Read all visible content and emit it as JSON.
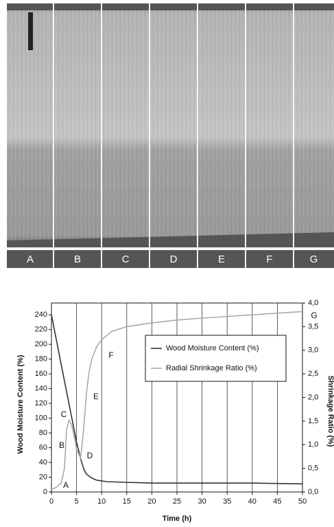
{
  "panel_labels": [
    "A",
    "B",
    "C",
    "D",
    "E",
    "F",
    "G"
  ],
  "chart_data": {
    "type": "line",
    "x_label": "Time (h)",
    "y_label": "Wood Moisture Content (%)",
    "y2_label": "Shrinkage Ratio (%)",
    "xlim": [
      0,
      50
    ],
    "xticks": [
      0,
      5,
      10,
      15,
      20,
      25,
      30,
      35,
      40,
      45,
      50
    ],
    "ylim": [
      0,
      256
    ],
    "yticks": [
      0,
      20,
      40,
      60,
      80,
      100,
      120,
      140,
      160,
      180,
      200,
      220,
      240
    ],
    "y2lim": [
      0,
      4
    ],
    "y2ticks": [
      {
        "value": 0,
        "label": "0,0"
      },
      {
        "value": 0.5,
        "label": "0,5"
      },
      {
        "value": 1,
        "label": "1,0"
      },
      {
        "value": 1.5,
        "label": "1,5"
      },
      {
        "value": 2,
        "label": "2,0"
      },
      {
        "value": 2.5,
        "label": "2,5"
      },
      {
        "value": 3,
        "label": "3,0"
      },
      {
        "value": 3.5,
        "label": "3,5"
      },
      {
        "value": 4,
        "label": "4,0"
      }
    ],
    "grid": "x",
    "legend": "right",
    "series": [
      {
        "name": "Wood Moisture Content (%)",
        "color": "#333333",
        "x": [
          0,
          2,
          4,
          5,
          5.8,
          6.5,
          7,
          8,
          9,
          11,
          15,
          20,
          30,
          40,
          50
        ],
        "values": [
          240,
          171,
          102,
          68,
          45,
          30,
          24,
          19,
          16,
          14,
          13,
          12,
          12,
          12,
          11
        ]
      },
      {
        "name": "Radial Shrinkage Ratio (%)",
        "color": "#aaaaaa",
        "axis": "y2",
        "x": [
          0,
          1,
          2,
          2.6,
          3,
          3.5,
          4,
          4.5,
          5,
          5.8,
          6.3,
          7,
          7.5,
          8,
          9,
          10,
          12,
          15,
          20,
          25,
          30,
          40,
          50
        ],
        "values": [
          0.05,
          0.1,
          0.2,
          0.5,
          1.3,
          1.52,
          1.42,
          1.2,
          0.9,
          0.72,
          1.2,
          2.1,
          2.55,
          2.8,
          3.08,
          3.22,
          3.4,
          3.5,
          3.58,
          3.64,
          3.68,
          3.75,
          3.82
        ]
      }
    ],
    "annotations": [
      "A",
      "B",
      "C",
      "D",
      "E",
      "F",
      "G"
    ]
  }
}
